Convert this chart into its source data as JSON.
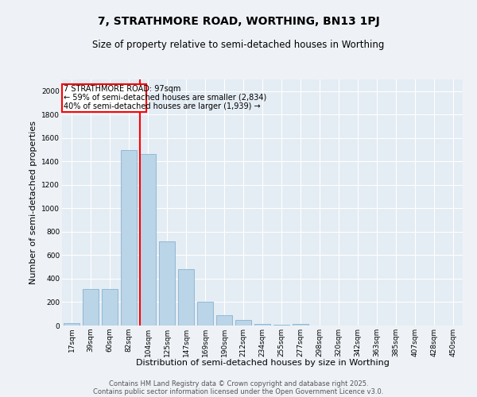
{
  "title": "7, STRATHMORE ROAD, WORTHING, BN13 1PJ",
  "subtitle": "Size of property relative to semi-detached houses in Worthing",
  "xlabel": "Distribution of semi-detached houses by size in Worthing",
  "ylabel": "Number of semi-detached properties",
  "categories": [
    "17sqm",
    "39sqm",
    "60sqm",
    "82sqm",
    "104sqm",
    "125sqm",
    "147sqm",
    "169sqm",
    "190sqm",
    "212sqm",
    "234sqm",
    "255sqm",
    "277sqm",
    "298sqm",
    "320sqm",
    "342sqm",
    "363sqm",
    "385sqm",
    "407sqm",
    "428sqm",
    "450sqm"
  ],
  "values": [
    20,
    310,
    310,
    1500,
    1460,
    720,
    480,
    200,
    90,
    50,
    15,
    10,
    15,
    0,
    0,
    0,
    0,
    0,
    0,
    0,
    0
  ],
  "bar_color": "#bad4e8",
  "bar_edge_color": "#7aaac8",
  "red_line_index": 4,
  "property_label": "7 STRATHMORE ROAD: 97sqm",
  "annotation_line1": "← 59% of semi-detached houses are smaller (2,834)",
  "annotation_line2": "40% of semi-detached houses are larger (1,939) →",
  "ylim": [
    0,
    2100
  ],
  "yticks": [
    0,
    200,
    400,
    600,
    800,
    1000,
    1200,
    1400,
    1600,
    1800,
    2000
  ],
  "footer_line1": "Contains HM Land Registry data © Crown copyright and database right 2025.",
  "footer_line2": "Contains public sector information licensed under the Open Government Licence v3.0.",
  "bg_color": "#eef2f7",
  "plot_bg_color": "#e4ecf4",
  "grid_color": "#ffffff",
  "title_fontsize": 10,
  "subtitle_fontsize": 8.5,
  "axis_label_fontsize": 8,
  "tick_fontsize": 6.5,
  "annotation_fontsize": 7,
  "footer_fontsize": 6
}
